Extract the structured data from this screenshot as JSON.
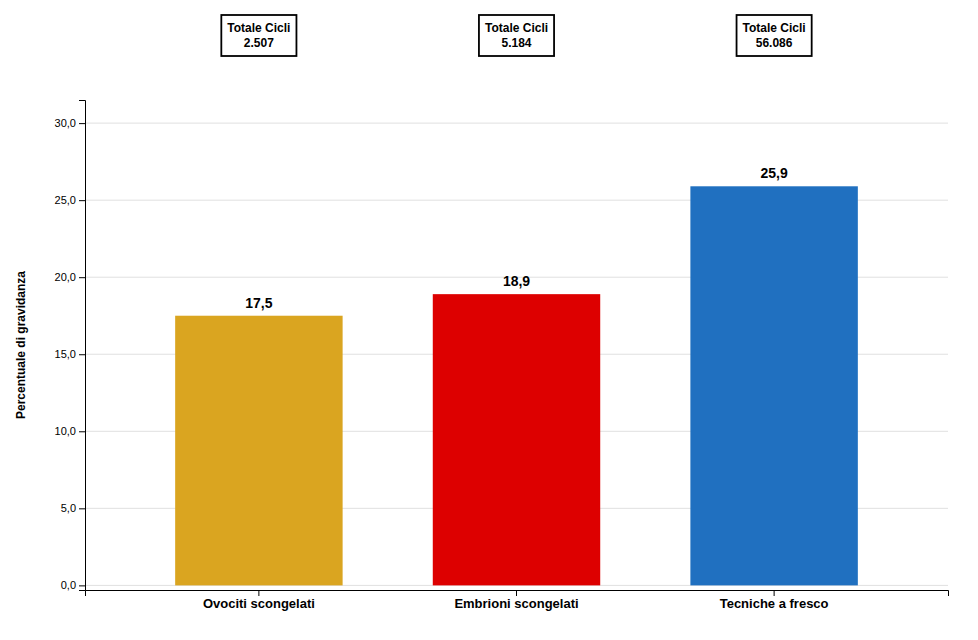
{
  "chart_data": {
    "type": "bar",
    "categories": [
      "Ovociti scongelati",
      "Embrioni scongelati",
      "Tecniche a fresco"
    ],
    "values": [
      17.5,
      18.9,
      25.9
    ],
    "value_labels": [
      "17,5",
      "18,9",
      "25,9"
    ],
    "data_labels": true,
    "colors": [
      "#DAA520",
      "#DD0000",
      "#2070C0"
    ],
    "ylabel": "Percentuale di gravidanza",
    "ylim": [
      -0.3,
      31.5
    ],
    "yticks": [
      {
        "value": 0.0,
        "label": "0,0"
      },
      {
        "value": 5.0,
        "label": "5,0"
      },
      {
        "value": 10.0,
        "label": "10,0"
      },
      {
        "value": 15.0,
        "label": "15,0"
      },
      {
        "value": 20.0,
        "label": "20,0"
      },
      {
        "value": 25.0,
        "label": "25,0"
      },
      {
        "value": 30.0,
        "label": "30,0"
      }
    ],
    "grid": true,
    "annotations": [
      "Totale Cicli\n2.507",
      "Totale Cicli\n5.184",
      "Totale Cicli\n56.086"
    ]
  }
}
